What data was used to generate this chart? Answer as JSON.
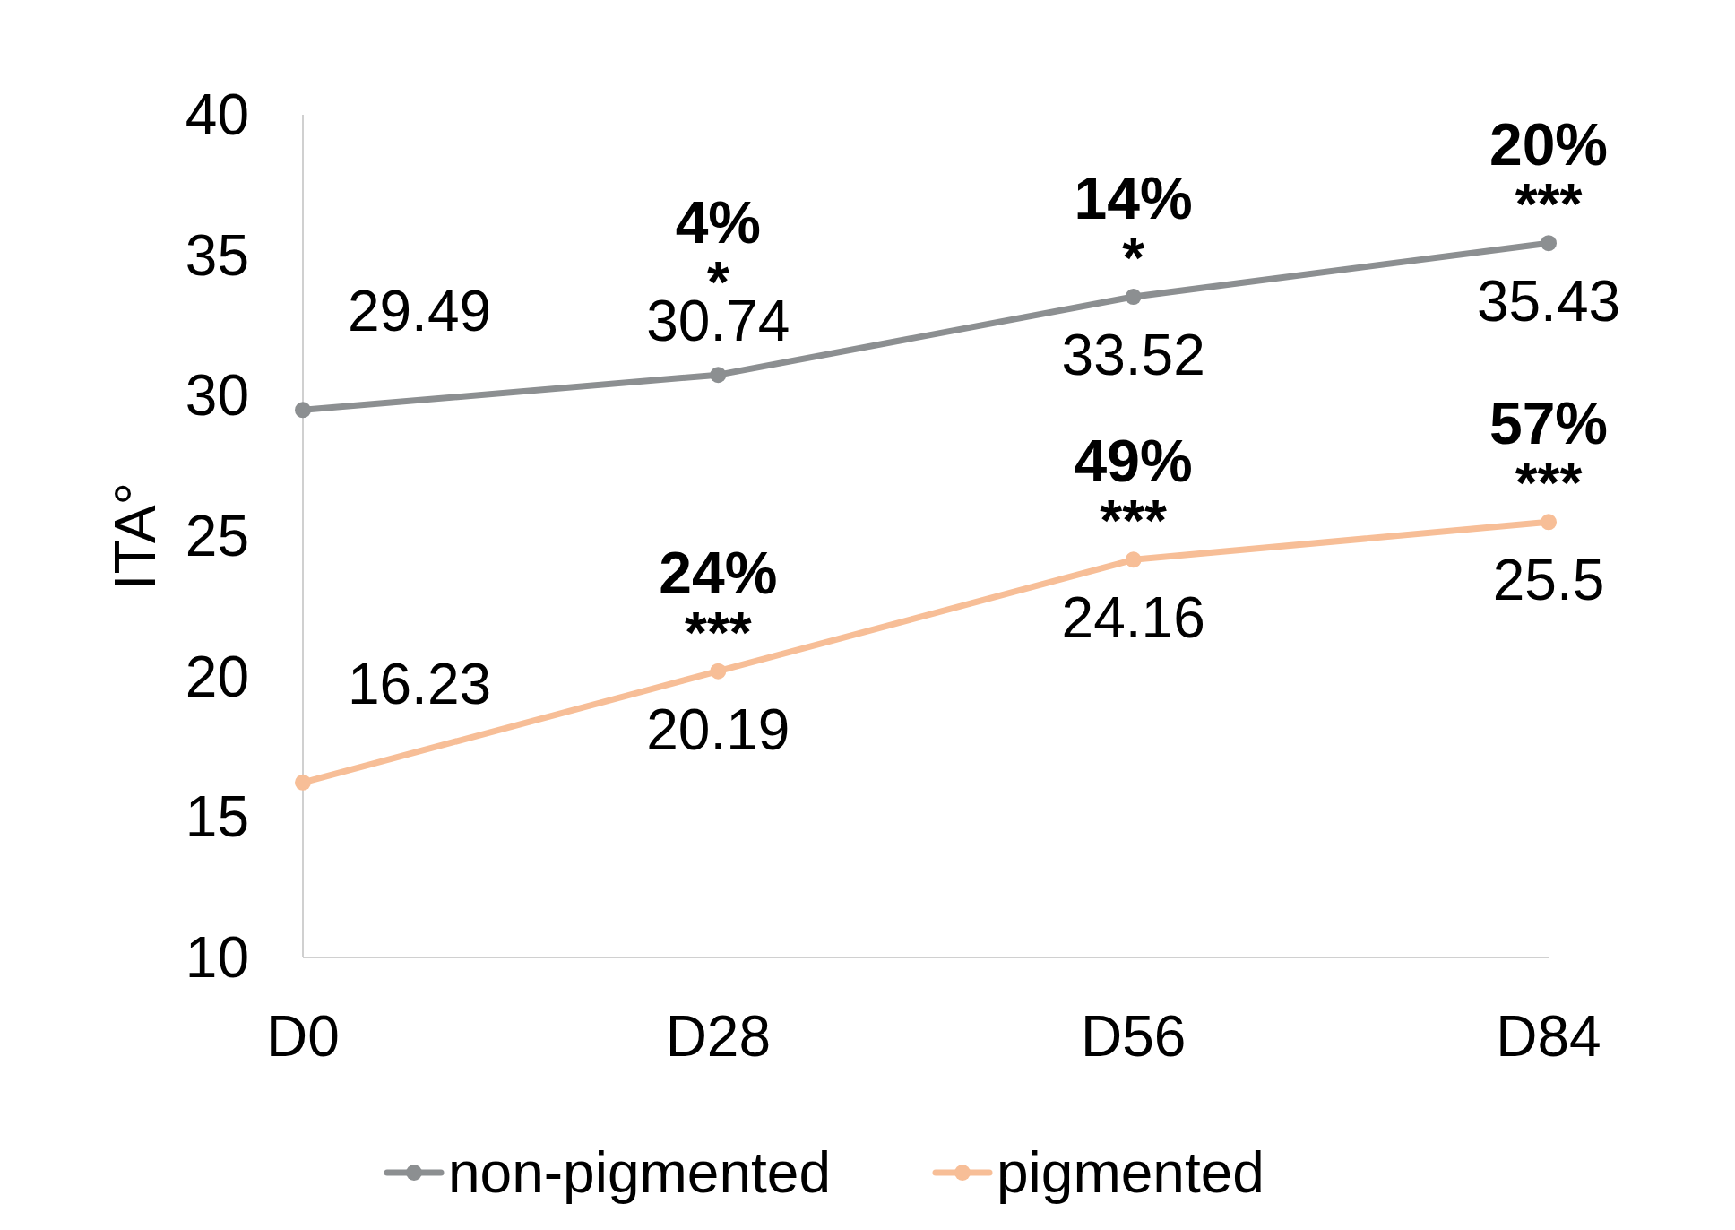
{
  "chart_data": {
    "type": "line",
    "ylabel": "ITA°",
    "categories": [
      "D0",
      "D28",
      "D56",
      "D84"
    ],
    "ylim": [
      10,
      40
    ],
    "yticks": [
      10,
      15,
      20,
      25,
      30,
      35,
      40
    ],
    "grid": false,
    "legend": "bottom",
    "marker": "circle",
    "line_style": "solid",
    "series": [
      {
        "name": "non-pigmented",
        "color": "#8c8f91",
        "values": [
          29.49,
          30.74,
          33.52,
          35.43
        ],
        "value_labels": [
          "29.49",
          "30.74",
          "33.52",
          "35.43"
        ]
      },
      {
        "name": "pigmented",
        "color": "#f7be97",
        "values": [
          16.23,
          20.19,
          24.16,
          25.5
        ],
        "value_labels": [
          "16.23",
          "20.19",
          "24.16",
          "25.5"
        ]
      }
    ],
    "annotations": [
      {
        "text": "4%",
        "x": "D28",
        "y": 30.74
      },
      {
        "text": "*",
        "x": "D28",
        "y": 30.74
      },
      {
        "text": "14%",
        "x": "D56",
        "y": 33.52
      },
      {
        "text": "*",
        "x": "D56",
        "y": 33.52
      },
      {
        "text": "20%",
        "x": "D84",
        "y": 35.43
      },
      {
        "text": "***",
        "x": "D84",
        "y": 35.43
      },
      {
        "text": "24%",
        "x": "D28",
        "y": 20.19
      },
      {
        "text": "***",
        "x": "D28",
        "y": 20.19
      },
      {
        "text": "49%",
        "x": "D56",
        "y": 24.16
      },
      {
        "text": "***",
        "x": "D56",
        "y": 24.16
      },
      {
        "text": "57%",
        "x": "D84",
        "y": 25.5
      },
      {
        "text": "***",
        "x": "D84",
        "y": 25.5
      }
    ]
  }
}
